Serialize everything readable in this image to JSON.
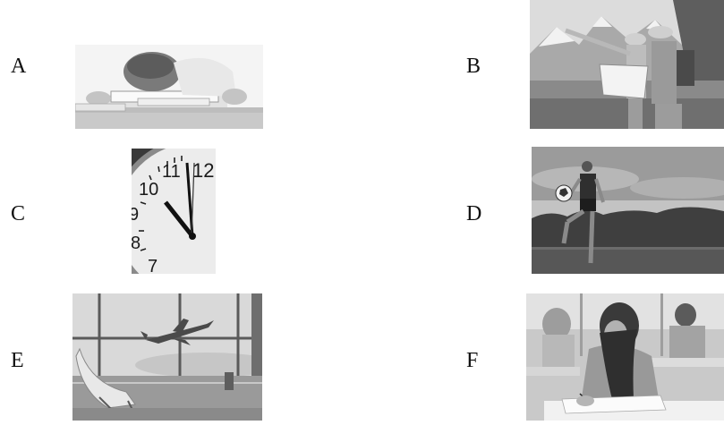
{
  "options": [
    {
      "letter": "A",
      "image": "student-sleeping-on-books"
    },
    {
      "letter": "B",
      "image": "hikers-reading-map-mountains"
    },
    {
      "letter": "C",
      "image": "wall-clock-near-twelve"
    },
    {
      "letter": "D",
      "image": "girl-playing-soccer"
    },
    {
      "letter": "E",
      "image": "airport-window-airplane"
    },
    {
      "letter": "F",
      "image": "student-writing-exam"
    }
  ],
  "clock": {
    "numerals": [
      "12",
      "11",
      "10",
      "9",
      "8",
      "7"
    ]
  }
}
